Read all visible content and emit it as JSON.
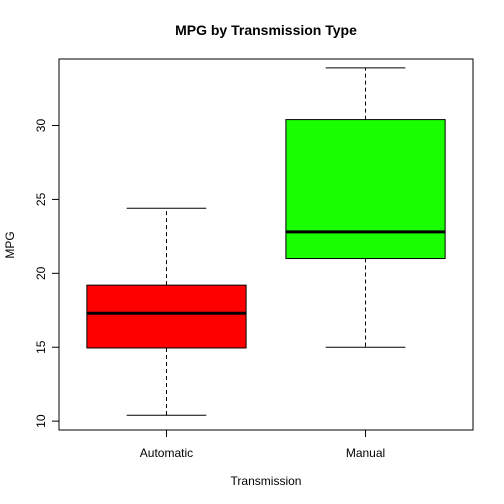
{
  "chart_data": {
    "type": "box",
    "title": "MPG by Transmission Type",
    "xlabel": "Transmission",
    "ylabel": "MPG",
    "ylim": [
      9.4,
      34.5
    ],
    "yticks": [
      10,
      15,
      20,
      25,
      30
    ],
    "categories": [
      "Automatic",
      "Manual"
    ],
    "boxes": [
      {
        "category": "Automatic",
        "min": 10.4,
        "q1": 14.95,
        "median": 17.3,
        "q3": 19.2,
        "max": 24.4,
        "color": "#ff0000"
      },
      {
        "category": "Manual",
        "min": 15.0,
        "q1": 21.0,
        "median": 22.8,
        "q3": 30.4,
        "max": 33.9,
        "color": "#1aff00"
      }
    ],
    "grid": false,
    "legend": "none"
  }
}
